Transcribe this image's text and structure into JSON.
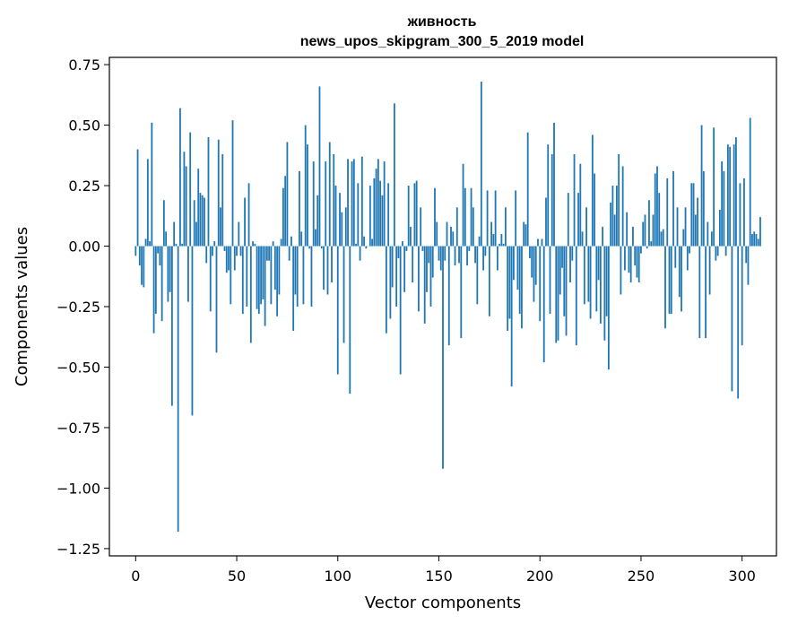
{
  "chart_data": {
    "type": "bar",
    "title": "живность",
    "subtitle": "news_upos_skipgram_300_5_2019 model",
    "xlabel": "Vector components",
    "ylabel": "Components values",
    "xlim": [
      -13,
      317
    ],
    "ylim": [
      -1.28,
      0.78
    ],
    "xticks": [
      0,
      50,
      100,
      150,
      200,
      250,
      300
    ],
    "yticks": [
      -1.25,
      -1.0,
      -0.75,
      -0.5,
      -0.25,
      0.0,
      0.25,
      0.5,
      0.75
    ],
    "ytick_labels": [
      "−1.25",
      "−1.00",
      "−0.75",
      "−0.50",
      "−0.25",
      "0.00",
      "0.25",
      "0.50",
      "0.75"
    ],
    "xtick_labels": [
      "0",
      "50",
      "100",
      "150",
      "200",
      "250",
      "300"
    ],
    "bar_color": "#1f77b4",
    "grid": false,
    "values": [
      -0.04,
      0.4,
      -0.08,
      -0.16,
      -0.17,
      0.03,
      0.36,
      0.02,
      0.51,
      -0.36,
      -0.28,
      -0.03,
      -0.08,
      -0.31,
      0.19,
      0.06,
      -0.23,
      -0.19,
      -0.66,
      0.1,
      0.01,
      -1.18,
      0.57,
      0.01,
      0.39,
      0.33,
      -0.23,
      0.47,
      -0.7,
      0.19,
      0.1,
      0.32,
      0.22,
      0.21,
      0.2,
      -0.07,
      0.45,
      -0.27,
      -0.04,
      0.02,
      -0.44,
      0.44,
      0.16,
      0.38,
      -0.02,
      -0.11,
      -0.1,
      -0.24,
      0.52,
      -0.1,
      -0.04,
      0.1,
      -0.04,
      -0.28,
      0.2,
      -0.25,
      0.26,
      -0.4,
      0.02,
      0.01,
      -0.26,
      -0.28,
      -0.24,
      -0.22,
      -0.33,
      -0.06,
      -0.06,
      -0.24,
      0.02,
      -0.18,
      -0.29,
      -0.2,
      0.03,
      0.24,
      0.29,
      0.43,
      -0.06,
      0.04,
      -0.35,
      -0.2,
      -0.25,
      0.31,
      0.06,
      -0.24,
      0.5,
      0.42,
      -0.01,
      -0.25,
      0.35,
      0.07,
      0.21,
      0.66,
      -0.01,
      -0.18,
      0.35,
      -0.2,
      0.43,
      -0.15,
      0.38,
      0.25,
      -0.53,
      0.22,
      0.14,
      -0.4,
      0.16,
      0.36,
      -0.61,
      0.35,
      0.36,
      0.01,
      0.26,
      -0.06,
      0.37,
      0.04,
      -0.01,
      0.0,
      0.25,
      0.03,
      0.28,
      0.32,
      0.36,
      0.27,
      0.21,
      0.35,
      -0.36,
      0.26,
      -0.3,
      -0.17,
      0.59,
      -0.25,
      -0.05,
      -0.53,
      0.02,
      -0.19,
      -0.02,
      0.25,
      0.08,
      -0.15,
      0.26,
      0.27,
      -0.27,
      0.16,
      -0.02,
      -0.32,
      -0.19,
      -0.07,
      -0.25,
      -0.13,
      0.24,
      0.1,
      -0.06,
      -0.1,
      -0.92,
      -0.06,
      0.1,
      -0.41,
      0.08,
      0.06,
      -0.08,
      0.16,
      -0.07,
      -0.38,
      0.34,
      0.24,
      -0.08,
      -0.02,
      0.24,
      0.16,
      -0.07,
      -0.24,
      0.04,
      0.68,
      -0.1,
      -0.04,
      0.23,
      -0.29,
      0.1,
      0.05,
      0.23,
      -0.1,
      0.01,
      0.05,
      0.01,
      0.16,
      -0.35,
      -0.3,
      -0.58,
      -0.14,
      0.23,
      -0.18,
      -0.28,
      -0.34,
      0.1,
      0.09,
      0.47,
      -0.05,
      -0.13,
      -0.23,
      -0.16,
      0.03,
      -0.31,
      0.03,
      -0.48,
      0.2,
      0.42,
      -0.28,
      0.38,
      0.51,
      -0.4,
      -0.39,
      -0.2,
      -0.09,
      -0.29,
      -0.37,
      0.22,
      -0.15,
      -0.06,
      0.38,
      -0.41,
      0.22,
      0.34,
      0.06,
      -0.24,
      0.16,
      -0.23,
      -0.3,
      0.46,
      0.3,
      -0.27,
      -0.14,
      -0.32,
      0.08,
      -0.39,
      -0.29,
      -0.51,
      0.18,
      0.25,
      0.13,
      0.25,
      0.38,
      -0.2,
      0.33,
      -0.1,
      0.14,
      -0.11,
      -0.15,
      0.08,
      -0.08,
      -0.13,
      -0.15,
      -0.03,
      0.1,
      0.13,
      -0.01,
      0.19,
      0.02,
      0.13,
      0.3,
      0.33,
      0.22,
      0.06,
      0.07,
      -0.34,
      0.28,
      -0.28,
      -0.28,
      0.31,
      -0.09,
      0.16,
      -0.21,
      -0.27,
      0.07,
      0.16,
      -0.1,
      -0.03,
      0.26,
      0.26,
      0.13,
      0.2,
      -0.38,
      0.5,
      0.31,
      -0.38,
      0.1,
      -0.2,
      0.06,
      0.49,
      -0.06,
      -0.04,
      0.15,
      0.35,
      0.31,
      -0.04,
      0.42,
      0.41,
      -0.6,
      0.42,
      0.45,
      -0.63,
      0.26,
      -0.41,
      0.28,
      -0.07,
      -0.16,
      0.53,
      0.05,
      0.06,
      0.05,
      0.03,
      0.12
    ]
  }
}
